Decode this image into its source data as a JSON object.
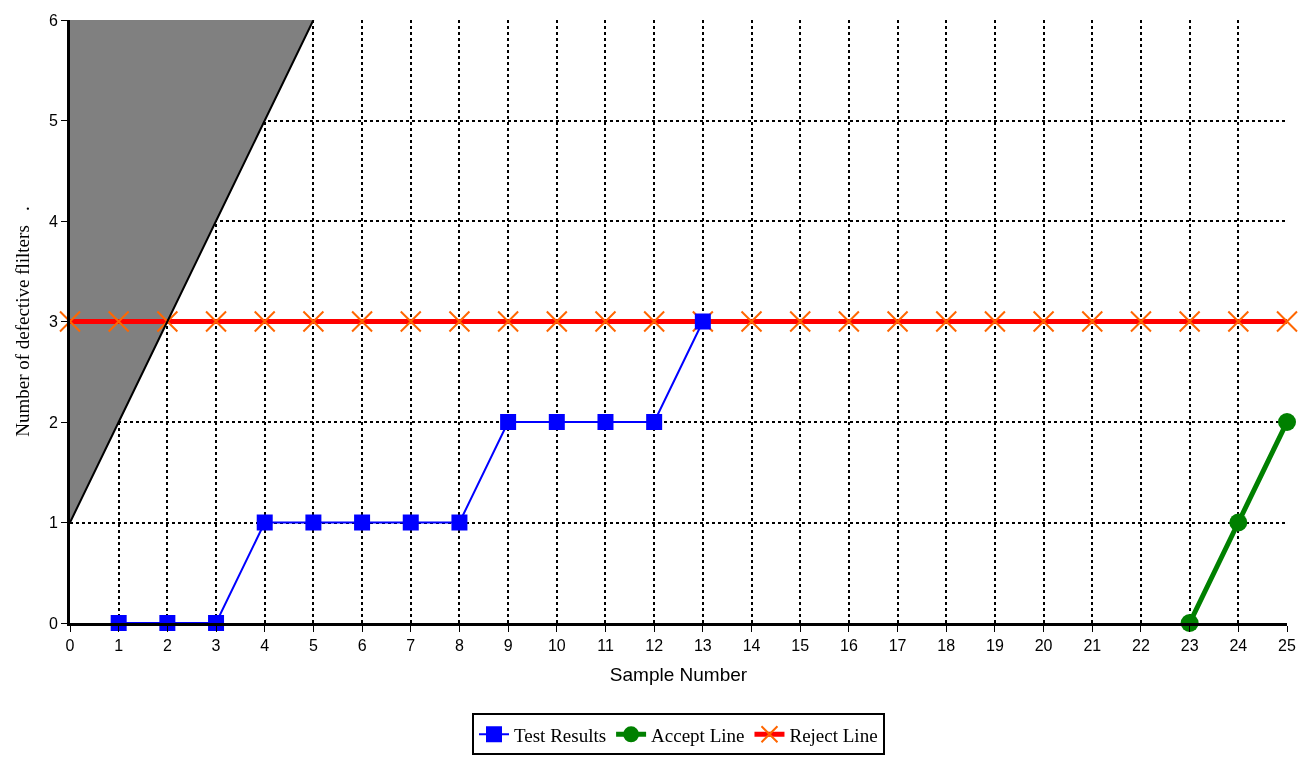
{
  "chart_data": {
    "type": "line",
    "xlabel": "Sample Number",
    "ylabel": "Number of defective flilters   .",
    "xlim": [
      0,
      25
    ],
    "xticks": [
      0,
      1,
      2,
      3,
      4,
      5,
      6,
      7,
      8,
      9,
      10,
      11,
      12,
      13,
      14,
      15,
      16,
      17,
      18,
      19,
      20,
      21,
      22,
      23,
      24,
      25
    ],
    "ylim": [
      0,
      6
    ],
    "yticks": [
      0,
      1,
      2,
      3,
      4,
      5,
      6
    ],
    "grid": true,
    "legend": "bottom",
    "series": [
      {
        "color": "#000000",
        "marker": "none",
        "x": [
          0,
          1,
          2,
          3,
          4,
          5
        ],
        "values": [
          1,
          2,
          3,
          4,
          5,
          6
        ],
        "lower": [
          1,
          2,
          3,
          4,
          5,
          6
        ],
        "upper": [
          6,
          6,
          6,
          6,
          6,
          6
        ]
      },
      {
        "name": "Test Results",
        "color": "#0000ff",
        "marker": "square",
        "x": [
          1,
          2,
          3,
          4,
          5,
          6,
          7,
          8,
          9,
          10,
          11,
          12,
          13
        ],
        "values": [
          0,
          0,
          0,
          1,
          1,
          1,
          1,
          1,
          2,
          2,
          2,
          2,
          3
        ]
      },
      {
        "name": "Accept Line",
        "color": "#008000",
        "marker": "circle",
        "x": [
          23,
          24,
          25
        ],
        "values": [
          0,
          1,
          2
        ]
      },
      {
        "name": "Reject Line",
        "color": "#ff0000",
        "marker": "cross",
        "x": [
          0,
          1,
          2,
          3,
          4,
          5,
          6,
          7,
          8,
          9,
          10,
          11,
          12,
          13,
          14,
          15,
          16,
          17,
          18,
          19,
          20,
          21,
          22,
          23,
          24,
          25
        ],
        "values": [
          3,
          3,
          3,
          3,
          3,
          3,
          3,
          3,
          3,
          3,
          3,
          3,
          3,
          3,
          3,
          3,
          3,
          3,
          3,
          3,
          3,
          3,
          3,
          3,
          3,
          3
        ]
      }
    ]
  }
}
